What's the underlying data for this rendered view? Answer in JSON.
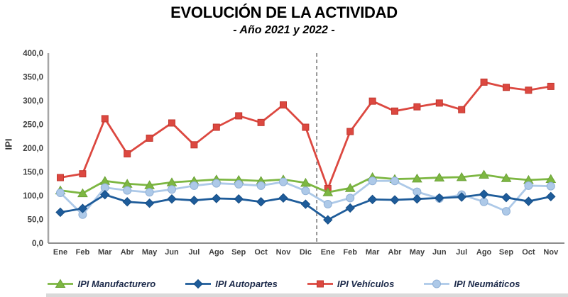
{
  "title": "EVOLUCIÓN DE LA ACTIVIDAD",
  "subtitle": "- Año 2021 y 2022 -",
  "y_axis_label": "IPI",
  "chart_data": {
    "type": "line",
    "title": "EVOLUCIÓN DE LA ACTIVIDAD",
    "subtitle": "- Año 2021 y 2022 -",
    "ylabel": "IPI",
    "xlabel": "",
    "grid": false,
    "legend_position": "bottom",
    "ylim": [
      0,
      400
    ],
    "x": [
      "Ene",
      "Feb",
      "Mar",
      "Abr",
      "May",
      "Jun",
      "Jul",
      "Ago",
      "Sep",
      "Oct",
      "Nov",
      "Dic",
      "Ene",
      "Feb",
      "Mar",
      "Abr",
      "May",
      "Jun",
      "Jul",
      "Ago",
      "Sep",
      "Oct",
      "Nov"
    ],
    "year_separator_after_index": 11,
    "y_ticks": {
      "values": [
        0,
        50,
        100,
        150,
        200,
        250,
        300,
        350,
        400
      ],
      "labels": [
        "0,0",
        "50,0",
        "100,0",
        "150,0",
        "200,0",
        "250,0",
        "300,0",
        "350,0",
        "400,0"
      ]
    },
    "series": [
      {
        "name": "IPI Manufacturero",
        "marker": "triangle",
        "color": "#7db742",
        "marker_stroke": "#6ca238",
        "values": [
          111,
          105,
          131,
          125,
          122,
          128,
          131,
          134,
          133,
          131,
          134,
          127,
          107,
          116,
          139,
          135,
          136,
          138,
          139,
          144,
          137,
          133,
          135
        ]
      },
      {
        "name": "IPI Autopartes",
        "marker": "diamond",
        "color": "#1e5c9a",
        "marker_stroke": "#164e86",
        "values": [
          65,
          73,
          102,
          87,
          84,
          93,
          90,
          94,
          93,
          87,
          95,
          82,
          49,
          74,
          92,
          91,
          93,
          95,
          97,
          103,
          96,
          88,
          98
        ]
      },
      {
        "name": "IPI Vehículos",
        "marker": "square",
        "color": "#dc4840",
        "marker_stroke": "#c2382f",
        "values": [
          138,
          146,
          262,
          188,
          221,
          253,
          207,
          244,
          268,
          254,
          291,
          244,
          115,
          235,
          299,
          278,
          287,
          295,
          281,
          339,
          328,
          322,
          330
        ]
      },
      {
        "name": "IPI Neumáticos",
        "marker": "circle",
        "color": "#adc9e8",
        "marker_stroke": "#90b0d6",
        "values": [
          106,
          60,
          117,
          111,
          107,
          113,
          121,
          126,
          124,
          121,
          129,
          110,
          82,
          95,
          131,
          131,
          108,
          94,
          102,
          87,
          67,
          121,
          120
        ]
      }
    ],
    "draw_order": [
      2,
      0,
      3,
      1
    ]
  },
  "legend": {
    "items": [
      {
        "label": "IPI Manufacturero",
        "series": 0
      },
      {
        "label": "IPI Autopartes",
        "series": 1
      },
      {
        "label": "IPI Vehículos",
        "series": 2
      },
      {
        "label": "IPI Neumáticos",
        "series": 3
      }
    ]
  }
}
